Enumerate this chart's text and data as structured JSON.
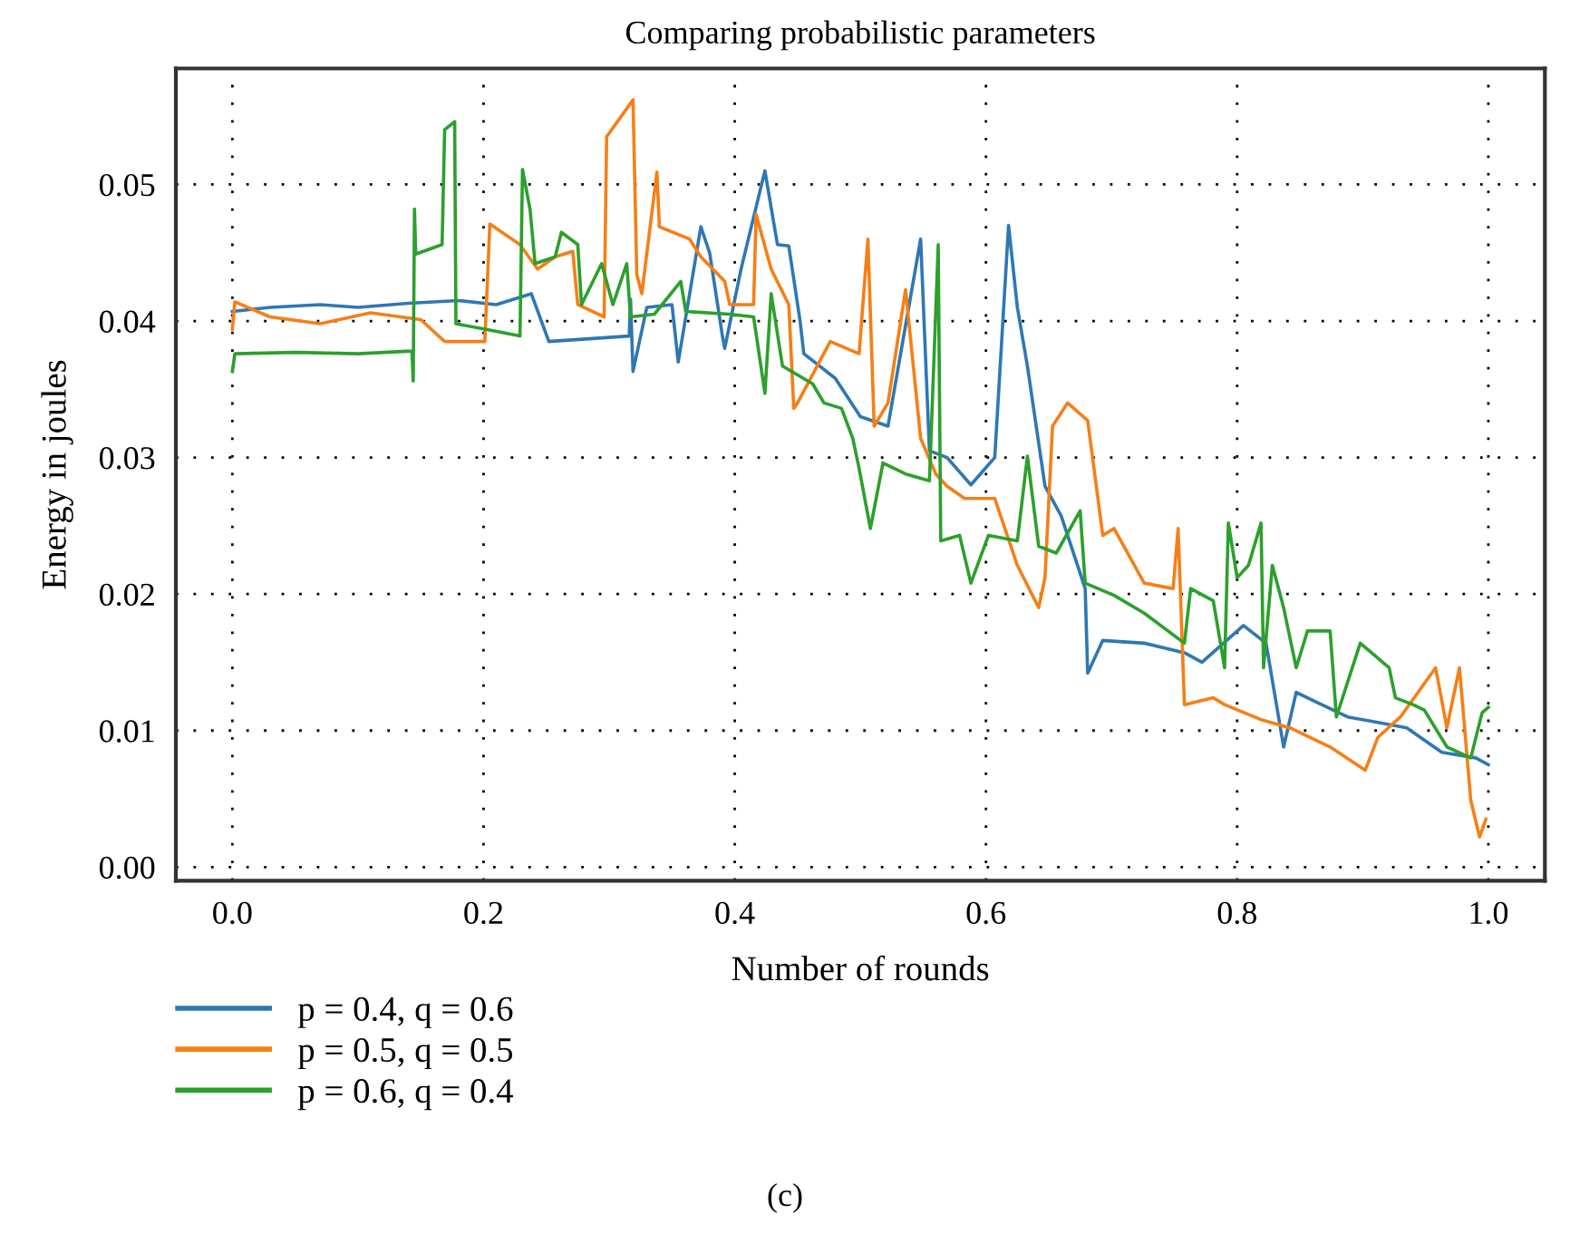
{
  "chart_data": {
    "type": "line",
    "title": "Comparing probabilistic parameters",
    "xlabel": "Number of rounds",
    "ylabel": "Energy in joules",
    "xlim": [
      -0.045,
      1.045
    ],
    "ylim": [
      -0.001,
      0.0585
    ],
    "xticks": [
      {
        "value": 0.0,
        "label": "0.0"
      },
      {
        "value": 0.2,
        "label": "0.2"
      },
      {
        "value": 0.4,
        "label": "0.4"
      },
      {
        "value": 0.6,
        "label": "0.6"
      },
      {
        "value": 0.8,
        "label": "0.8"
      },
      {
        "value": 1.0,
        "label": "1.0"
      }
    ],
    "yticks": [
      {
        "value": 0.0,
        "label": "0.00"
      },
      {
        "value": 0.01,
        "label": "0.01"
      },
      {
        "value": 0.02,
        "label": "0.02"
      },
      {
        "value": 0.03,
        "label": "0.03"
      },
      {
        "value": 0.04,
        "label": "0.04"
      },
      {
        "value": 0.05,
        "label": "0.05"
      }
    ],
    "grid": true,
    "legend": "bottom left",
    "line_style": "solid",
    "marker": "none",
    "annotations": [
      "(c)"
    ],
    "series": [
      {
        "name": "p = 0.4, q = 0.6",
        "color": "#2f77b4",
        "x": [
          0.0,
          0.03,
          0.07,
          0.1,
          0.14,
          0.18,
          0.21,
          0.238,
          0.252,
          0.316,
          0.317,
          0.319,
          0.33,
          0.35,
          0.355,
          0.373,
          0.38,
          0.39,
          0.392,
          0.405,
          0.424,
          0.434,
          0.443,
          0.452,
          0.455,
          0.48,
          0.5,
          0.522,
          0.548,
          0.555,
          0.569,
          0.588,
          0.607,
          0.618,
          0.625,
          0.633,
          0.647,
          0.66,
          0.679,
          0.681,
          0.693,
          0.726,
          0.758,
          0.772,
          0.805,
          0.823,
          0.837,
          0.847,
          0.865,
          0.888,
          0.912,
          0.935,
          0.963,
          0.99,
          1.0
        ],
        "values": [
          0.0407,
          0.041,
          0.0412,
          0.041,
          0.0413,
          0.0415,
          0.0412,
          0.042,
          0.0385,
          0.0389,
          0.0416,
          0.0363,
          0.041,
          0.0412,
          0.037,
          0.0469,
          0.045,
          0.039,
          0.038,
          0.0438,
          0.051,
          0.0456,
          0.0455,
          0.04,
          0.0376,
          0.0358,
          0.033,
          0.0323,
          0.046,
          0.0305,
          0.03,
          0.028,
          0.03,
          0.047,
          0.041,
          0.0367,
          0.0279,
          0.0257,
          0.0204,
          0.0142,
          0.0166,
          0.0164,
          0.0157,
          0.015,
          0.0177,
          0.0164,
          0.0088,
          0.0128,
          0.012,
          0.011,
          0.0106,
          0.0102,
          0.0084,
          0.008,
          0.0075
        ]
      },
      {
        "name": "p = 0.5, q = 0.5",
        "color": "#f57f17",
        "x": [
          0.0,
          0.002,
          0.03,
          0.07,
          0.11,
          0.15,
          0.169,
          0.201,
          0.205,
          0.229,
          0.243,
          0.257,
          0.271,
          0.275,
          0.296,
          0.298,
          0.319,
          0.322,
          0.326,
          0.338,
          0.34,
          0.364,
          0.373,
          0.392,
          0.396,
          0.415,
          0.417,
          0.429,
          0.443,
          0.447,
          0.45,
          0.476,
          0.499,
          0.506,
          0.511,
          0.522,
          0.536,
          0.548,
          0.56,
          0.569,
          0.583,
          0.607,
          0.625,
          0.642,
          0.647,
          0.653,
          0.665,
          0.681,
          0.693,
          0.702,
          0.726,
          0.749,
          0.753,
          0.758,
          0.781,
          0.79,
          0.819,
          0.842,
          0.874,
          0.902,
          0.912,
          0.93,
          0.958,
          0.967,
          0.977,
          0.986,
          0.993,
          0.998
        ],
        "values": [
          0.0394,
          0.0414,
          0.0403,
          0.0398,
          0.0406,
          0.0401,
          0.0385,
          0.0385,
          0.0471,
          0.0456,
          0.0438,
          0.0447,
          0.0451,
          0.0412,
          0.0403,
          0.0535,
          0.0562,
          0.0434,
          0.042,
          0.0509,
          0.0469,
          0.046,
          0.0447,
          0.0429,
          0.0412,
          0.0412,
          0.0478,
          0.0438,
          0.0412,
          0.0336,
          0.034,
          0.0385,
          0.0376,
          0.046,
          0.0323,
          0.034,
          0.0423,
          0.0314,
          0.0288,
          0.0279,
          0.027,
          0.027,
          0.0221,
          0.019,
          0.0212,
          0.0323,
          0.034,
          0.0327,
          0.0243,
          0.0248,
          0.0208,
          0.0204,
          0.0248,
          0.0119,
          0.0124,
          0.0119,
          0.0108,
          0.0102,
          0.0088,
          0.0071,
          0.0095,
          0.011,
          0.0146,
          0.0102,
          0.0146,
          0.0049,
          0.0022,
          0.0035
        ]
      },
      {
        "name": "p = 0.6, q = 0.4",
        "color": "#2ca02c",
        "x": [
          0.0,
          0.002,
          0.05,
          0.1,
          0.143,
          0.144,
          0.145,
          0.146,
          0.167,
          0.169,
          0.177,
          0.178,
          0.201,
          0.229,
          0.231,
          0.237,
          0.241,
          0.257,
          0.262,
          0.275,
          0.278,
          0.294,
          0.303,
          0.314,
          0.317,
          0.336,
          0.357,
          0.361,
          0.396,
          0.415,
          0.42,
          0.424,
          0.429,
          0.438,
          0.462,
          0.471,
          0.485,
          0.494,
          0.499,
          0.508,
          0.518,
          0.536,
          0.555,
          0.562,
          0.564,
          0.579,
          0.588,
          0.602,
          0.625,
          0.633,
          0.642,
          0.656,
          0.675,
          0.679,
          0.702,
          0.726,
          0.758,
          0.763,
          0.781,
          0.79,
          0.793,
          0.8,
          0.809,
          0.819,
          0.821,
          0.828,
          0.837,
          0.847,
          0.856,
          0.874,
          0.879,
          0.898,
          0.921,
          0.926,
          0.94,
          0.949,
          0.967,
          0.986,
          0.995,
          1.0
        ],
        "values": [
          0.0363,
          0.0376,
          0.0377,
          0.0376,
          0.0378,
          0.0356,
          0.0482,
          0.0449,
          0.0456,
          0.054,
          0.0546,
          0.0398,
          0.0394,
          0.0389,
          0.0511,
          0.0482,
          0.0442,
          0.0447,
          0.0465,
          0.0456,
          0.0412,
          0.0442,
          0.0412,
          0.0442,
          0.0403,
          0.0405,
          0.0429,
          0.0407,
          0.0405,
          0.0403,
          0.0372,
          0.0347,
          0.042,
          0.0367,
          0.0354,
          0.034,
          0.0336,
          0.0314,
          0.0292,
          0.0248,
          0.0296,
          0.0288,
          0.0283,
          0.0456,
          0.0239,
          0.0243,
          0.0208,
          0.0243,
          0.0239,
          0.0301,
          0.0235,
          0.023,
          0.0261,
          0.0208,
          0.0199,
          0.0186,
          0.0164,
          0.0204,
          0.0195,
          0.0146,
          0.0252,
          0.0212,
          0.0221,
          0.0252,
          0.0146,
          0.0221,
          0.019,
          0.0146,
          0.0173,
          0.0173,
          0.011,
          0.0164,
          0.0146,
          0.0124,
          0.0119,
          0.0115,
          0.0088,
          0.008,
          0.0113,
          0.0117
        ]
      }
    ]
  }
}
